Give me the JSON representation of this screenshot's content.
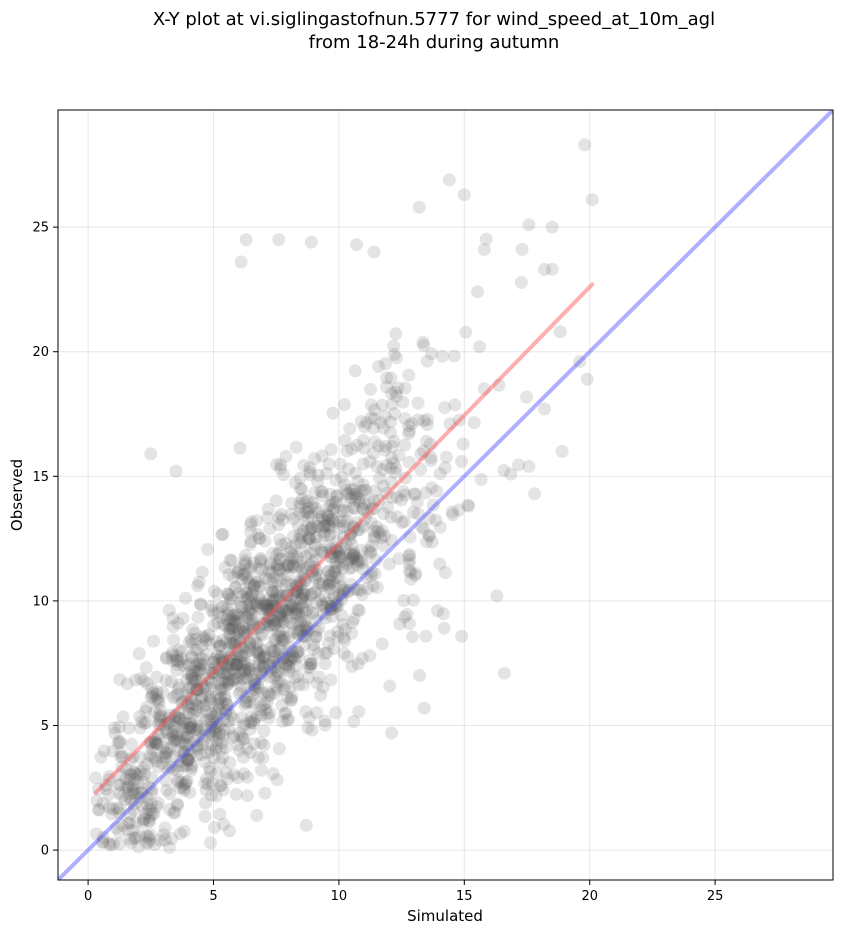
{
  "chart_data": {
    "type": "scatter",
    "title_line1": "X-Y plot at vi.siglingastofnun.5777 for wind_speed_at_10m_agl",
    "title_line2": "from 18-24h during autumn",
    "xlabel": "Simulated",
    "ylabel": "Observed",
    "xlim": [
      -1.2,
      29.7
    ],
    "ylim": [
      -1.2,
      29.7
    ],
    "xticks": [
      0,
      5,
      10,
      15,
      20,
      25
    ],
    "yticks": [
      0,
      5,
      10,
      15,
      20,
      25
    ],
    "grid": true,
    "point_color": "#555555",
    "n_points": 1600,
    "regression_line": {
      "color": "#ff4d4d",
      "x": [
        0.3,
        20.1
      ],
      "y": [
        2.3,
        22.7
      ]
    },
    "identity_line": {
      "color": "#4d4dff",
      "x": [
        -1.2,
        29.7
      ],
      "y": [
        -1.2,
        29.7
      ]
    },
    "outliers": [
      [
        19.8,
        28.3
      ],
      [
        20.1,
        26.1
      ],
      [
        15.0,
        26.3
      ],
      [
        14.4,
        26.9
      ],
      [
        13.2,
        25.8
      ],
      [
        18.5,
        25.0
      ],
      [
        8.9,
        24.4
      ],
      [
        7.6,
        24.5
      ],
      [
        6.3,
        24.5
      ],
      [
        6.1,
        23.6
      ],
      [
        10.7,
        24.3
      ],
      [
        11.4,
        24.0
      ],
      [
        15.8,
        24.1
      ],
      [
        17.3,
        24.1
      ],
      [
        18.2,
        23.3
      ],
      [
        16.6,
        7.1
      ],
      [
        16.3,
        10.2
      ],
      [
        18.9,
        16.0
      ],
      [
        17.8,
        14.3
      ],
      [
        19.6,
        19.6
      ],
      [
        19.9,
        18.9
      ],
      [
        2.5,
        15.9
      ],
      [
        3.5,
        15.2
      ],
      [
        0.3,
        2.9
      ],
      [
        0.9,
        0.2
      ],
      [
        8.7,
        1.0
      ],
      [
        13.4,
        5.7
      ],
      [
        14.2,
        8.9
      ],
      [
        12.1,
        4.7
      ],
      [
        18.2,
        17.7
      ]
    ]
  }
}
